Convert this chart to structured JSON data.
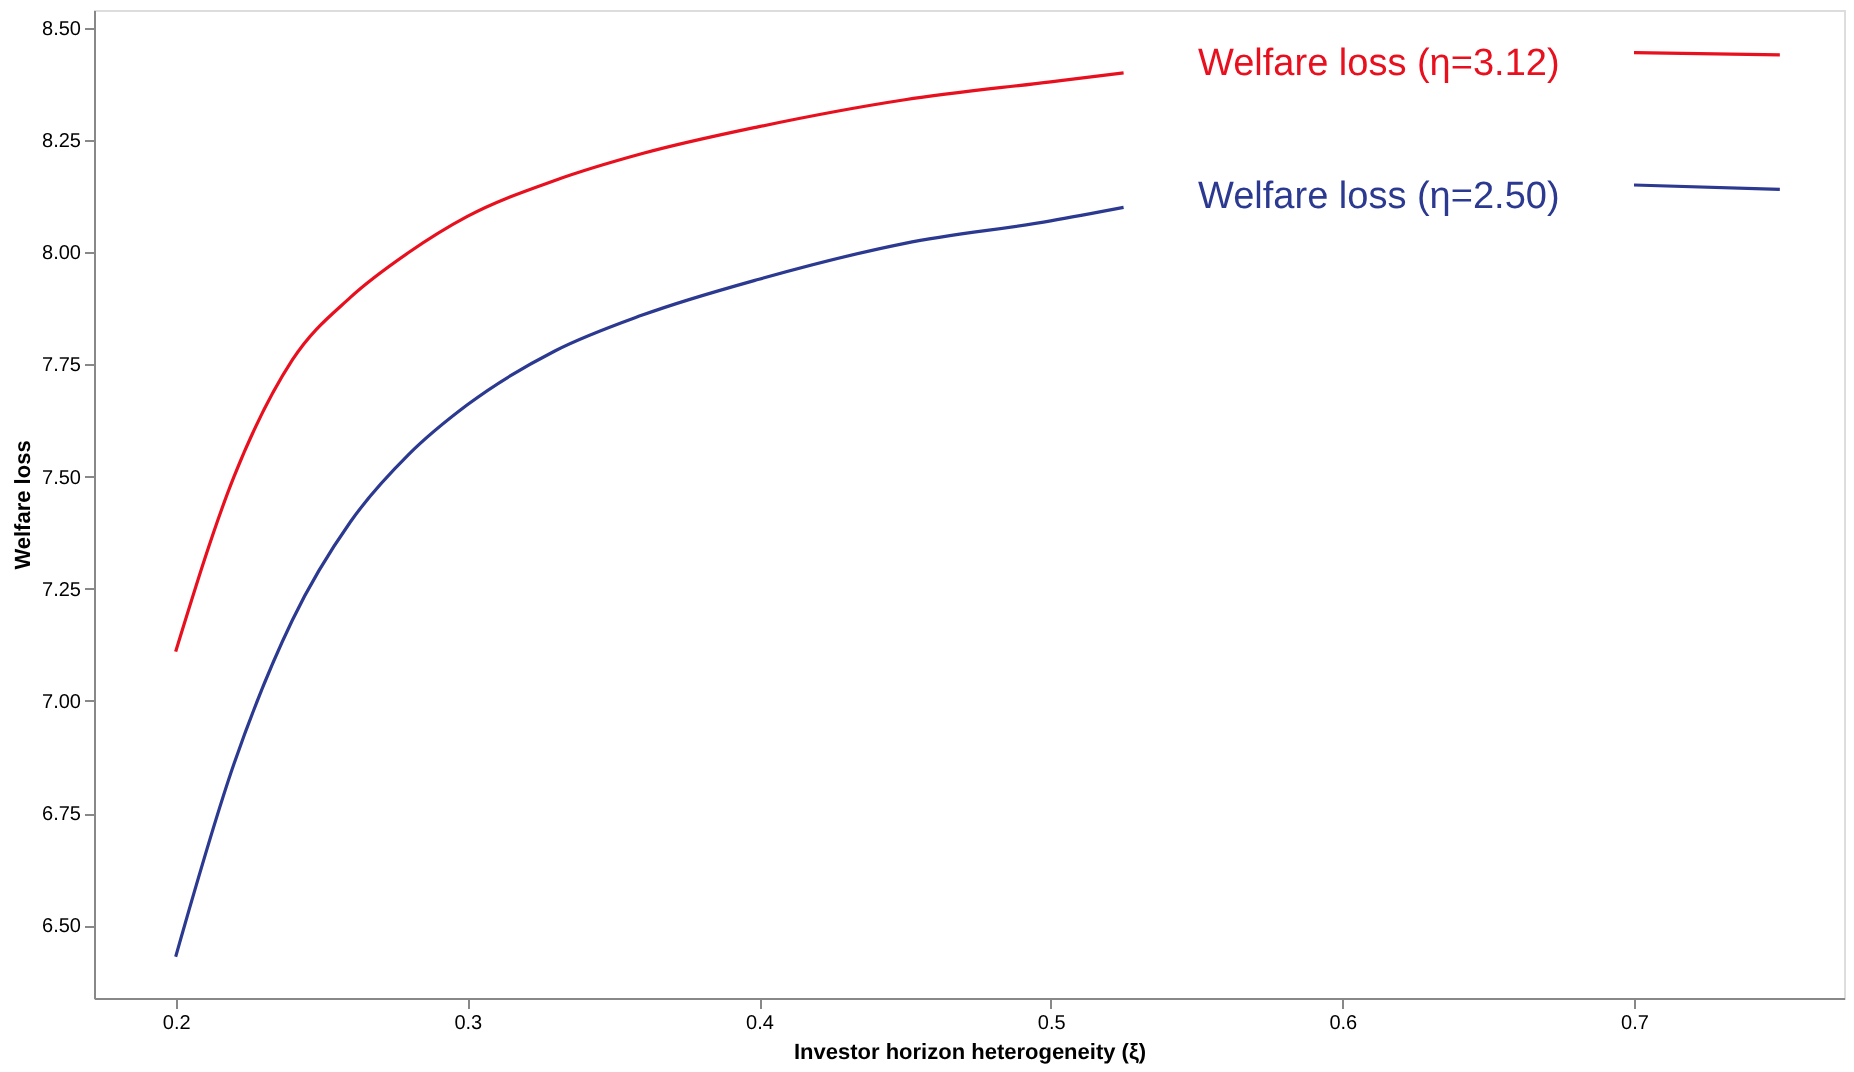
{
  "chart_data": {
    "type": "line",
    "xlabel": "Investor horizon heterogeneity (ξ)",
    "ylabel": "Welfare loss",
    "x": [
      0.2,
      0.22,
      0.24,
      0.26,
      0.28,
      0.3,
      0.33,
      0.36,
      0.4,
      0.45,
      0.5,
      0.525,
      0.67,
      0.7,
      0.75
    ],
    "series": [
      {
        "name": "Welfare loss (η=3.12)",
        "color": "#e8101e",
        "values": [
          7.11,
          7.5,
          7.76,
          7.9,
          8.0,
          8.08,
          8.16,
          8.22,
          8.28,
          8.34,
          8.38,
          8.4,
          null,
          8.445,
          8.44
        ]
      },
      {
        "name": "Welfare loss (η=2.50)",
        "color": "#2b3990",
        "values": [
          6.43,
          6.86,
          7.18,
          7.4,
          7.55,
          7.66,
          7.78,
          7.86,
          7.94,
          8.02,
          8.07,
          8.1,
          null,
          8.15,
          8.14
        ]
      }
    ],
    "xlim": [
      0.172,
      0.772
    ],
    "ylim": [
      6.338,
      8.54
    ],
    "xticks": [
      0.2,
      0.3,
      0.4,
      0.5,
      0.6,
      0.7
    ],
    "yticks": [
      {
        "value": 6.5,
        "label": "6.50"
      },
      {
        "value": 6.75,
        "label": "6.75"
      },
      {
        "value": 7.0,
        "label": "7.00"
      },
      {
        "value": 7.25,
        "label": "7.25"
      },
      {
        "value": 7.5,
        "label": "7.50"
      },
      {
        "value": 7.75,
        "label": "7.75"
      },
      {
        "value": 8.0,
        "label": "8.00"
      },
      {
        "value": 8.25,
        "label": "8.25"
      },
      {
        "value": 8.5,
        "label": "8.50"
      }
    ],
    "grid": false,
    "legend": false,
    "marker": "none",
    "line_style": "solid"
  }
}
